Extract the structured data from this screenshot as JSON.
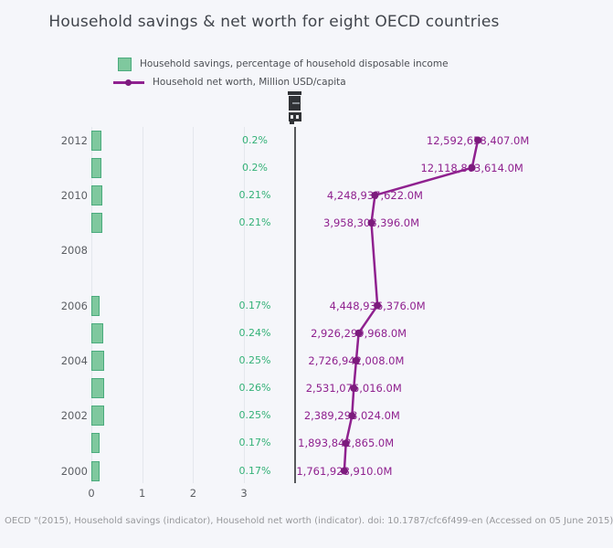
{
  "title": "Household savings & net worth for eight OECD countries",
  "legend": {
    "items": [
      {
        "label": "Household savings, percentage of household disposable income",
        "swatch": "green-bar-swatch-icon",
        "color": "#7fc89e"
      },
      {
        "label": "Household net worth, Million USD/capita",
        "swatch": "purple-line-swatch-icon",
        "color": "#8f218f"
      }
    ],
    "position": "top-left"
  },
  "toolbar_icon": "camera-toolbar-icon",
  "footer": "OECD \"(2015), Household savings (indicator), Household net worth (indicator). doi: 10.1787/cfc6f499-en (Accessed on 05 June 2015)",
  "colors": {
    "background": "#f5f6fa",
    "title_text": "#41454c",
    "bar_fill": "#7fc89e",
    "bar_border": "#4aab7d",
    "savings_label_text": "#33b177",
    "networth_line": "#8f218f",
    "networth_marker": "#7c1b7d",
    "right_axis_line": "#56585b",
    "tick_text": "#5b5e63",
    "gridline": "#e4e7ed",
    "footer_text": "#97989b"
  },
  "chart_data": {
    "type": "bar+line",
    "orientation": "horizontal",
    "grid": "vertical-only",
    "years": [
      2012,
      2011,
      2010,
      2009,
      2008,
      2007,
      2006,
      2005,
      2004,
      2003,
      2002,
      2001,
      2000
    ],
    "year_tick_labels": [
      "2012",
      null,
      "2010",
      null,
      "2008",
      null,
      "2006",
      null,
      "2004",
      null,
      "2002",
      null,
      "2000"
    ],
    "series": [
      {
        "name": "Household savings, percentage of household disposable income",
        "type": "bar",
        "color": "#7fc89e",
        "values": [
          0.2,
          0.2,
          0.21,
          0.21,
          null,
          null,
          0.17,
          0.24,
          0.25,
          0.26,
          0.25,
          0.17,
          0.17
        ],
        "labels": [
          "0.2%",
          "0.2%",
          "0.21%",
          "0.21%",
          null,
          null,
          "0.17%",
          "0.24%",
          "0.25%",
          "0.26%",
          "0.25%",
          "0.17%",
          "0.17%"
        ]
      },
      {
        "name": "Household net worth, Million USD/capita",
        "type": "line",
        "color": "#8f218f",
        "connectgaps": true,
        "values": [
          12592658407,
          12118863614,
          4248937622,
          3958308396,
          null,
          null,
          4448936376,
          2926299968,
          2726942008,
          2531076016,
          2389298024,
          1893842865,
          1761928910
        ],
        "labels": [
          "12,592,658,407.0M",
          "12,118,863,614.0M",
          "4,248,937,622.0M",
          "3,958,308,396.0M",
          null,
          null,
          "4,448,936,376.0M",
          "2,926,299,968.0M",
          "2,726,942,008.0M",
          "2,531,076,016.0M",
          "2,389,298,024.0M",
          "1,893,842,865.0M",
          "1,761,928,910.0M"
        ]
      }
    ],
    "xaxis_left": {
      "ticks": [
        "0",
        "1",
        "2",
        "3"
      ],
      "range": [
        0,
        3.95
      ]
    },
    "xaxis_right": {
      "ticks": [],
      "approx_range_billions": [
        -2.1,
        18.3
      ]
    },
    "xlabel": "",
    "ylabel": ""
  }
}
